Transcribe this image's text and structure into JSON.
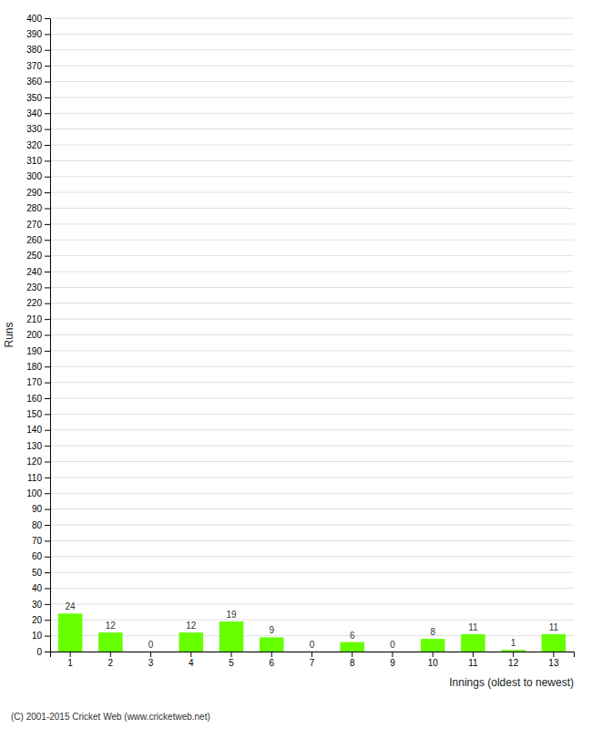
{
  "chart_data": {
    "type": "bar",
    "xlabel": "Innings (oldest to newest)",
    "ylabel": "Runs",
    "categories": [
      "1",
      "2",
      "3",
      "4",
      "5",
      "6",
      "7",
      "8",
      "9",
      "10",
      "11",
      "12",
      "13"
    ],
    "values": [
      24,
      12,
      0,
      12,
      19,
      9,
      0,
      6,
      0,
      8,
      11,
      1,
      11
    ],
    "color": "#66ff00",
    "ylim": [
      0,
      400
    ],
    "yticks": [
      0,
      10,
      20,
      30,
      40,
      50,
      60,
      70,
      80,
      90,
      100,
      110,
      120,
      130,
      140,
      150,
      160,
      170,
      180,
      190,
      200,
      210,
      220,
      230,
      240,
      250,
      260,
      270,
      280,
      290,
      300,
      310,
      320,
      330,
      340,
      350,
      360,
      370,
      380,
      390,
      400
    ],
    "grid": true,
    "data_labels": true,
    "annotations": [
      "(C) 2001-2015 Cricket Web (www.cricketweb.net)"
    ]
  }
}
